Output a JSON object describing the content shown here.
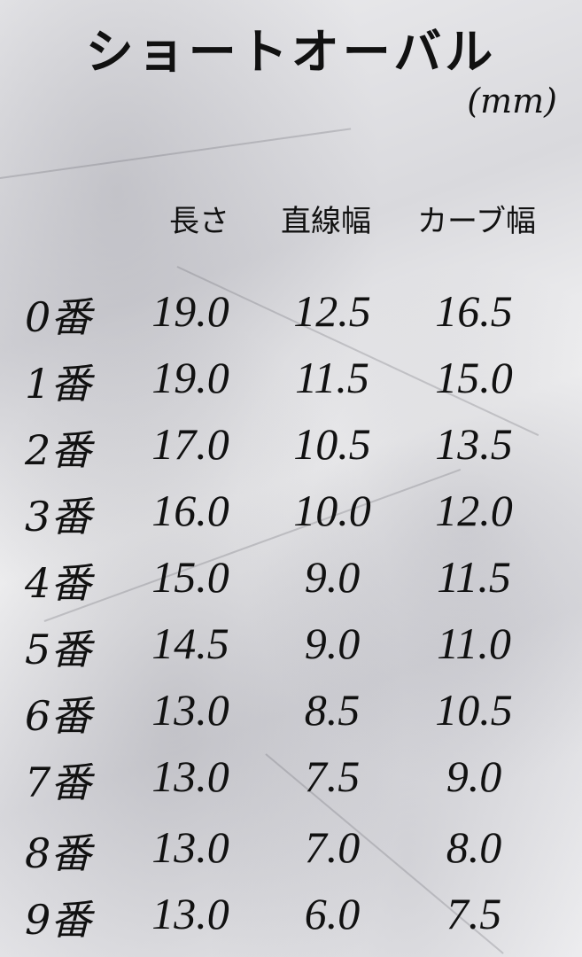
{
  "title": "ショートオーバル",
  "unit": "(mm)",
  "headers": [
    "長さ",
    "直線幅",
    "カーブ幅"
  ],
  "rows": [
    {
      "label": "0番",
      "values": [
        "19.0",
        "12.5",
        "16.5"
      ]
    },
    {
      "label": "1番",
      "values": [
        "19.0",
        "11.5",
        "15.0"
      ]
    },
    {
      "label": "2番",
      "values": [
        "17.0",
        "10.5",
        "13.5"
      ]
    },
    {
      "label": "3番",
      "values": [
        "16.0",
        "10.0",
        "12.0"
      ]
    },
    {
      "label": "4番",
      "values": [
        "15.0",
        "9.0",
        "11.5"
      ]
    },
    {
      "label": "5番",
      "values": [
        "14.5",
        "9.0",
        "11.0"
      ]
    },
    {
      "label": "6番",
      "values": [
        "13.0",
        "8.5",
        "10.5"
      ]
    },
    {
      "label": "7番",
      "values": [
        "13.0",
        "7.5",
        "9.0"
      ]
    },
    {
      "label": "8番",
      "values": [
        "13.0",
        "7.0",
        "8.0"
      ]
    },
    {
      "label": "9番",
      "values": [
        "13.0",
        "6.0",
        "7.5"
      ]
    }
  ]
}
